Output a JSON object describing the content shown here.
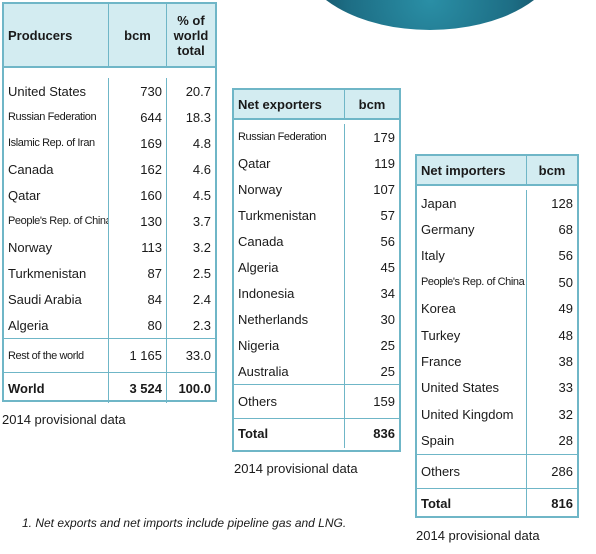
{
  "producers": {
    "headers": {
      "name": "Producers",
      "bcm": "bcm",
      "pct": "% of world total"
    },
    "rows": [
      {
        "name": "United States",
        "bcm": "730",
        "pct": "20.7"
      },
      {
        "name": "Russian Federation",
        "bcm": "644",
        "pct": "18.3"
      },
      {
        "name": "Islamic Rep. of Iran",
        "bcm": "169",
        "pct": "4.8"
      },
      {
        "name": "Canada",
        "bcm": "162",
        "pct": "4.6"
      },
      {
        "name": "Qatar",
        "bcm": "160",
        "pct": "4.5"
      },
      {
        "name": "People's Rep. of China",
        "bcm": "130",
        "pct": "3.7"
      },
      {
        "name": "Norway",
        "bcm": "113",
        "pct": "3.2"
      },
      {
        "name": "Turkmenistan",
        "bcm": "87",
        "pct": "2.5"
      },
      {
        "name": "Saudi Arabia",
        "bcm": "84",
        "pct": "2.4"
      },
      {
        "name": "Algeria",
        "bcm": "80",
        "pct": "2.3"
      }
    ],
    "rest": {
      "name": "Rest of the world",
      "bcm": "1 165",
      "pct": "33.0"
    },
    "total": {
      "name": "World",
      "bcm": "3 524",
      "pct": "100.0"
    },
    "caption": "2014 provisional data"
  },
  "exporters": {
    "headers": {
      "name": "Net exporters",
      "bcm": "bcm"
    },
    "rows": [
      {
        "name": "Russian Federation",
        "bcm": "179"
      },
      {
        "name": "Qatar",
        "bcm": "119"
      },
      {
        "name": "Norway",
        "bcm": "107"
      },
      {
        "name": "Turkmenistan",
        "bcm": "57"
      },
      {
        "name": "Canada",
        "bcm": "56"
      },
      {
        "name": "Algeria",
        "bcm": "45"
      },
      {
        "name": "Indonesia",
        "bcm": "34"
      },
      {
        "name": "Netherlands",
        "bcm": "30"
      },
      {
        "name": "Nigeria",
        "bcm": "25"
      },
      {
        "name": "Australia",
        "bcm": "25"
      }
    ],
    "others": {
      "name": "Others",
      "bcm": "159"
    },
    "total": {
      "name": "Total",
      "bcm": "836"
    },
    "caption": "2014 provisional data"
  },
  "importers": {
    "headers": {
      "name": "Net importers",
      "bcm": "bcm"
    },
    "rows": [
      {
        "name": "Japan",
        "bcm": "128"
      },
      {
        "name": "Germany",
        "bcm": "68"
      },
      {
        "name": "Italy",
        "bcm": "56"
      },
      {
        "name": "People's Rep. of China",
        "bcm": "50"
      },
      {
        "name": "Korea",
        "bcm": "49"
      },
      {
        "name": "Turkey",
        "bcm": "48"
      },
      {
        "name": "France",
        "bcm": "38"
      },
      {
        "name": "United States",
        "bcm": "33"
      },
      {
        "name": "United Kingdom",
        "bcm": "32"
      },
      {
        "name": "Spain",
        "bcm": "28"
      }
    ],
    "others": {
      "name": "Others",
      "bcm": "286"
    },
    "total": {
      "name": "Total",
      "bcm": "816"
    },
    "caption": "2014 provisional data"
  },
  "footnote": "1. Net exports and net imports include pipeline gas and LNG."
}
